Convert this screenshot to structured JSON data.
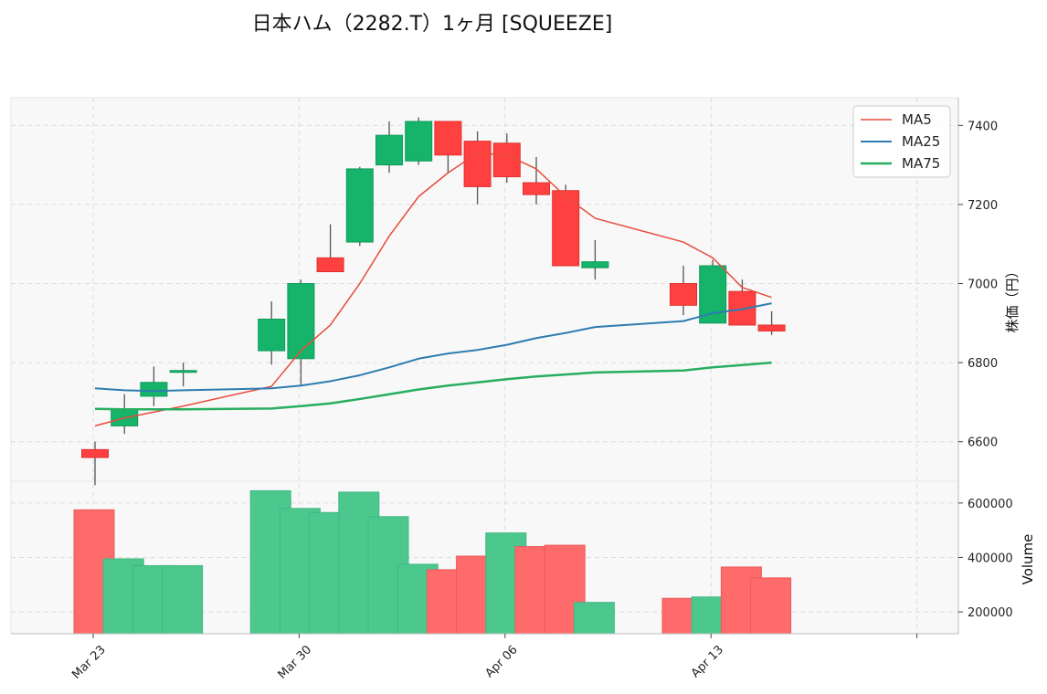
{
  "chart_data": {
    "type": "candlestick",
    "title": "日本ハム（2282.T）1ヶ月 [SQUEEZE]",
    "dates": [
      "Mar 23",
      "Mar 24",
      "Mar 25",
      "Mar 26",
      "Mar 27",
      "Mar 28",
      "Mar 29",
      "Mar 30",
      "Mar 31",
      "Apr 01",
      "Apr 02",
      "Apr 03",
      "Apr 04",
      "Apr 05",
      "Apr 06",
      "Apr 07",
      "Apr 08",
      "Apr 09",
      "Apr 10",
      "Apr 11",
      "Apr 12",
      "Apr 13",
      "Apr 14",
      "Apr 15",
      "Apr 16",
      "Apr 17",
      "Apr 18",
      "Apr 19",
      "Apr 20",
      "Apr 21"
    ],
    "x_ticks": [
      "Mar 23",
      "Mar 30",
      "Apr 06",
      "Apr 13"
    ],
    "candles": [
      {
        "d": 0,
        "o": 6580,
        "h": 6600,
        "l": 6490,
        "c": 6560
      },
      {
        "d": 1,
        "o": 6640,
        "h": 6720,
        "l": 6620,
        "c": 6680
      },
      {
        "d": 2,
        "o": 6715,
        "h": 6790,
        "l": 6690,
        "c": 6750
      },
      {
        "d": 3,
        "o": 6780,
        "h": 6800,
        "l": 6740,
        "c": 6780
      },
      {
        "d": 6,
        "o": 6830,
        "h": 6955,
        "l": 6795,
        "c": 6910
      },
      {
        "d": 7,
        "o": 6810,
        "h": 7010,
        "l": 6740,
        "c": 7000
      },
      {
        "d": 8,
        "o": 7065,
        "h": 7150,
        "l": 7030,
        "c": 7030
      },
      {
        "d": 9,
        "o": 7105,
        "h": 7295,
        "l": 7095,
        "c": 7290
      },
      {
        "d": 10,
        "o": 7300,
        "h": 7410,
        "l": 7280,
        "c": 7375
      },
      {
        "d": 11,
        "o": 7310,
        "h": 7420,
        "l": 7300,
        "c": 7410
      },
      {
        "d": 12,
        "o": 7410,
        "h": 7410,
        "l": 7280,
        "c": 7325
      },
      {
        "d": 13,
        "o": 7360,
        "h": 7385,
        "l": 7200,
        "c": 7245
      },
      {
        "d": 14,
        "o": 7355,
        "h": 7380,
        "l": 7255,
        "c": 7270
      },
      {
        "d": 15,
        "o": 7255,
        "h": 7320,
        "l": 7200,
        "c": 7225
      },
      {
        "d": 16,
        "o": 7235,
        "h": 7250,
        "l": 7045,
        "c": 7045
      },
      {
        "d": 17,
        "o": 7040,
        "h": 7110,
        "l": 7010,
        "c": 7055
      },
      {
        "d": 20,
        "o": 7000,
        "h": 7045,
        "l": 6920,
        "c": 6945
      },
      {
        "d": 21,
        "o": 6900,
        "h": 7060,
        "l": 6900,
        "c": 7045
      },
      {
        "d": 22,
        "o": 6980,
        "h": 7010,
        "l": 6895,
        "c": 6895
      },
      {
        "d": 23,
        "o": 6895,
        "h": 6930,
        "l": 6870,
        "c": 6880
      }
    ],
    "volume": [
      {
        "d": 0,
        "v": 575000,
        "dir": "down"
      },
      {
        "d": 1,
        "v": 395000,
        "dir": "up"
      },
      {
        "d": 2,
        "v": 370000,
        "dir": "up"
      },
      {
        "d": 3,
        "v": 370000,
        "dir": "up"
      },
      {
        "d": 6,
        "v": 645000,
        "dir": "up"
      },
      {
        "d": 7,
        "v": 580000,
        "dir": "up"
      },
      {
        "d": 8,
        "v": 565000,
        "dir": "up"
      },
      {
        "d": 9,
        "v": 640000,
        "dir": "up"
      },
      {
        "d": 10,
        "v": 550000,
        "dir": "up"
      },
      {
        "d": 11,
        "v": 375000,
        "dir": "up"
      },
      {
        "d": 12,
        "v": 355000,
        "dir": "down"
      },
      {
        "d": 13,
        "v": 405000,
        "dir": "down"
      },
      {
        "d": 14,
        "v": 490000,
        "dir": "up"
      },
      {
        "d": 15,
        "v": 440000,
        "dir": "down"
      },
      {
        "d": 16,
        "v": 445000,
        "dir": "down"
      },
      {
        "d": 17,
        "v": 235000,
        "dir": "up"
      },
      {
        "d": 20,
        "v": 250000,
        "dir": "down"
      },
      {
        "d": 21,
        "v": 255000,
        "dir": "up"
      },
      {
        "d": 22,
        "v": 365000,
        "dir": "down"
      },
      {
        "d": 23,
        "v": 325000,
        "dir": "down"
      }
    ],
    "ma": [
      {
        "name": "MA5",
        "color": "#e74c3c",
        "width": 1.5,
        "points": [
          [
            0,
            6640
          ],
          [
            1,
            6660
          ],
          [
            2,
            6675
          ],
          [
            3,
            6690
          ],
          [
            6,
            6740
          ],
          [
            7,
            6830
          ],
          [
            8,
            6895
          ],
          [
            9,
            7000
          ],
          [
            10,
            7120
          ],
          [
            11,
            7220
          ],
          [
            12,
            7280
          ],
          [
            13,
            7330
          ],
          [
            14,
            7325
          ],
          [
            15,
            7290
          ],
          [
            16,
            7220
          ],
          [
            17,
            7165
          ],
          [
            20,
            7105
          ],
          [
            21,
            7065
          ],
          [
            22,
            6990
          ],
          [
            23,
            6965
          ]
        ]
      },
      {
        "name": "MA25",
        "color": "#2e7cb0",
        "width": 2,
        "points": [
          [
            0,
            6735
          ],
          [
            1,
            6730
          ],
          [
            2,
            6728
          ],
          [
            3,
            6730
          ],
          [
            6,
            6735
          ],
          [
            7,
            6742
          ],
          [
            8,
            6753
          ],
          [
            9,
            6768
          ],
          [
            10,
            6788
          ],
          [
            11,
            6810
          ],
          [
            12,
            6823
          ],
          [
            13,
            6832
          ],
          [
            14,
            6845
          ],
          [
            15,
            6862
          ],
          [
            16,
            6875
          ],
          [
            17,
            6890
          ],
          [
            20,
            6905
          ],
          [
            21,
            6925
          ],
          [
            22,
            6935
          ],
          [
            23,
            6950
          ]
        ]
      },
      {
        "name": "MA75",
        "color": "#27ae60",
        "width": 2.5,
        "points": [
          [
            0,
            6683
          ],
          [
            1,
            6682
          ],
          [
            2,
            6682
          ],
          [
            3,
            6682
          ],
          [
            6,
            6684
          ],
          [
            7,
            6690
          ],
          [
            8,
            6697
          ],
          [
            9,
            6708
          ],
          [
            10,
            6720
          ],
          [
            11,
            6732
          ],
          [
            12,
            6742
          ],
          [
            13,
            6750
          ],
          [
            14,
            6758
          ],
          [
            15,
            6765
          ],
          [
            16,
            6770
          ],
          [
            17,
            6775
          ],
          [
            20,
            6780
          ],
          [
            21,
            6788
          ],
          [
            22,
            6794
          ],
          [
            23,
            6800
          ]
        ]
      }
    ],
    "price_axis": {
      "label": "株価（円）",
      "ylim": [
        6500,
        7470
      ],
      "ticks": [
        6600,
        6800,
        7000,
        7200,
        7400
      ]
    },
    "volume_axis": {
      "label": "Volume",
      "ylim": [
        120000,
        680000
      ],
      "ticks": [
        200000,
        400000,
        600000
      ],
      "tick_labels": [
        "200000",
        "400000",
        "600000"
      ]
    },
    "colors": {
      "up": "#16b36a",
      "down": "#ff4040",
      "up_vol": "#4cc88f",
      "down_vol": "#ff6b6b",
      "wick": "#555555",
      "panel_bg": "#f8f8f8",
      "grid": "#dcdcdc"
    },
    "legend": {
      "position": "top-right",
      "entries": [
        "MA5",
        "MA25",
        "MA75"
      ]
    },
    "grid": true
  }
}
